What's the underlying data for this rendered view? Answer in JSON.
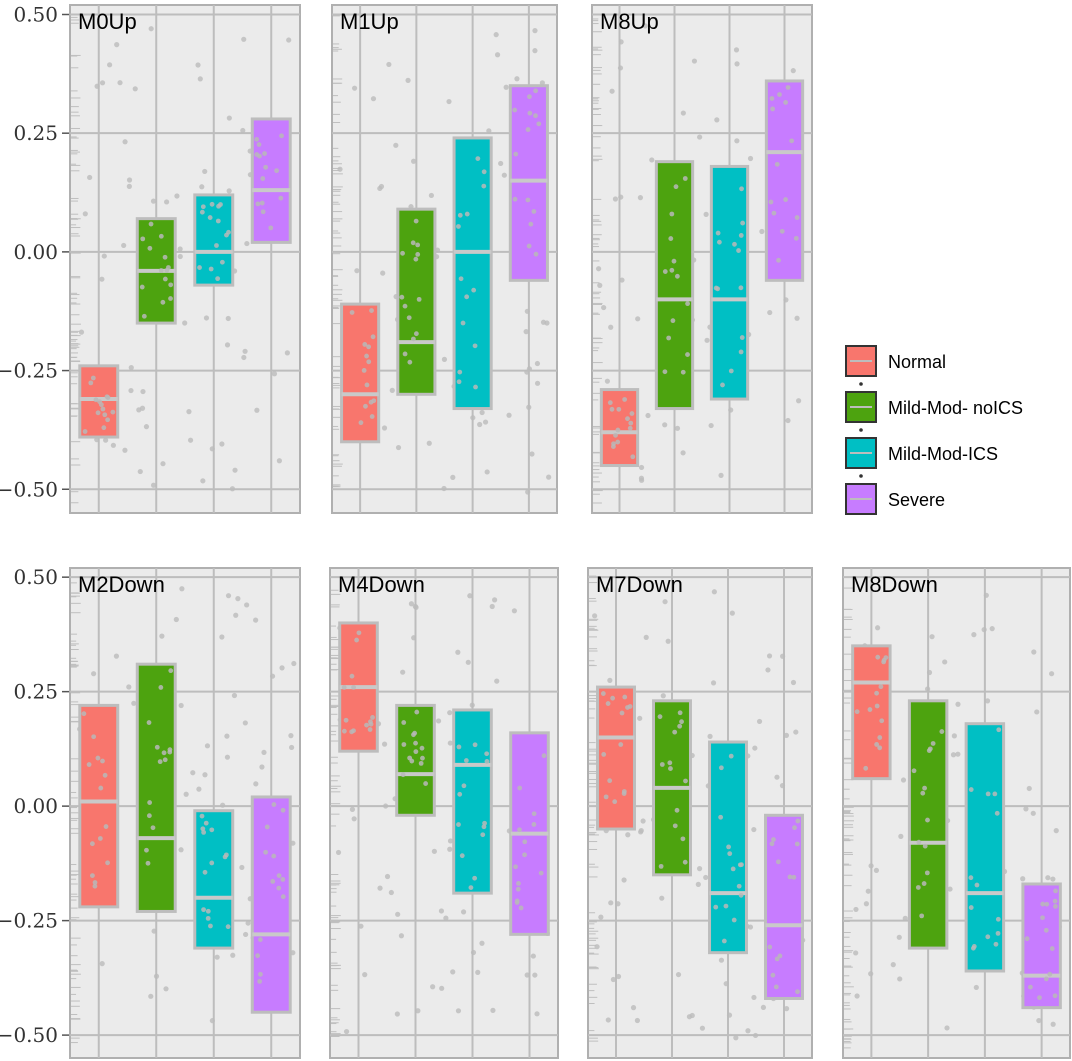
{
  "chart_data": {
    "type": "box",
    "ylim": [
      -0.55,
      0.52
    ],
    "y_ticks": [
      0.5,
      0.25,
      0.0,
      -0.25,
      -0.5
    ],
    "y_tick_labels": [
      "0.50",
      "0.25",
      "0.00",
      "−0.25",
      "−0.50"
    ],
    "categories": [
      "Normal",
      "Mild-Mod- noICS",
      "Mild-Mod-ICS",
      "Severe"
    ],
    "colors": {
      "Normal": "#F8766D",
      "Mild-Mod- noICS": "#4DA30F",
      "Mild-Mod-ICS": "#00BFC4",
      "Severe": "#C77CFF"
    },
    "panels": [
      {
        "title": "M0Up",
        "boxes": [
          {
            "group": "Normal",
            "low": -0.39,
            "high": -0.24,
            "median": -0.31
          },
          {
            "group": "Mild-Mod- noICS",
            "low": -0.15,
            "high": 0.07,
            "median": -0.04
          },
          {
            "group": "Mild-Mod-ICS",
            "low": -0.07,
            "high": 0.12,
            "median": 0.0
          },
          {
            "group": "Severe",
            "low": 0.02,
            "high": 0.28,
            "median": 0.13
          }
        ]
      },
      {
        "title": "M1Up",
        "boxes": [
          {
            "group": "Normal",
            "low": -0.4,
            "high": -0.11,
            "median": -0.3
          },
          {
            "group": "Mild-Mod- noICS",
            "low": -0.3,
            "high": 0.09,
            "median": -0.19
          },
          {
            "group": "Mild-Mod-ICS",
            "low": -0.33,
            "high": 0.24,
            "median": 0.0
          },
          {
            "group": "Severe",
            "low": -0.06,
            "high": 0.35,
            "median": 0.15
          }
        ]
      },
      {
        "title": "M8Up",
        "boxes": [
          {
            "group": "Normal",
            "low": -0.45,
            "high": -0.29,
            "median": -0.38
          },
          {
            "group": "Mild-Mod- noICS",
            "low": -0.33,
            "high": 0.19,
            "median": -0.1
          },
          {
            "group": "Mild-Mod-ICS",
            "low": -0.31,
            "high": 0.18,
            "median": -0.1
          },
          {
            "group": "Severe",
            "low": -0.06,
            "high": 0.36,
            "median": 0.21
          }
        ]
      },
      {
        "title": "M2Down",
        "boxes": [
          {
            "group": "Normal",
            "low": -0.22,
            "high": 0.22,
            "median": 0.01
          },
          {
            "group": "Mild-Mod- noICS",
            "low": -0.23,
            "high": 0.31,
            "median": -0.07
          },
          {
            "group": "Mild-Mod-ICS",
            "low": -0.31,
            "high": -0.01,
            "median": -0.2
          },
          {
            "group": "Severe",
            "low": -0.45,
            "high": 0.02,
            "median": -0.28
          }
        ]
      },
      {
        "title": "M4Down",
        "boxes": [
          {
            "group": "Normal",
            "low": 0.12,
            "high": 0.4,
            "median": 0.26
          },
          {
            "group": "Mild-Mod- noICS",
            "low": -0.02,
            "high": 0.22,
            "median": 0.07
          },
          {
            "group": "Mild-Mod-ICS",
            "low": -0.19,
            "high": 0.21,
            "median": 0.09
          },
          {
            "group": "Severe",
            "low": -0.28,
            "high": 0.16,
            "median": -0.06
          }
        ]
      },
      {
        "title": "M7Down",
        "boxes": [
          {
            "group": "Normal",
            "low": -0.05,
            "high": 0.26,
            "median": 0.15
          },
          {
            "group": "Mild-Mod- noICS",
            "low": -0.15,
            "high": 0.23,
            "median": 0.04
          },
          {
            "group": "Mild-Mod-ICS",
            "low": -0.32,
            "high": 0.14,
            "median": -0.19
          },
          {
            "group": "Severe",
            "low": -0.42,
            "high": -0.02,
            "median": -0.26
          }
        ]
      },
      {
        "title": "M8Down",
        "boxes": [
          {
            "group": "Normal",
            "low": 0.06,
            "high": 0.35,
            "median": 0.27
          },
          {
            "group": "Mild-Mod- noICS",
            "low": -0.31,
            "high": 0.23,
            "median": -0.08
          },
          {
            "group": "Mild-Mod-ICS",
            "low": -0.36,
            "high": 0.18,
            "median": -0.19
          },
          {
            "group": "Severe",
            "low": -0.44,
            "high": -0.17,
            "median": -0.37
          }
        ]
      }
    ],
    "legend": {
      "placement": "right",
      "items": [
        "Normal",
        "Mild-Mod- noICS",
        "Mild-Mod-ICS",
        "Severe"
      ]
    }
  }
}
